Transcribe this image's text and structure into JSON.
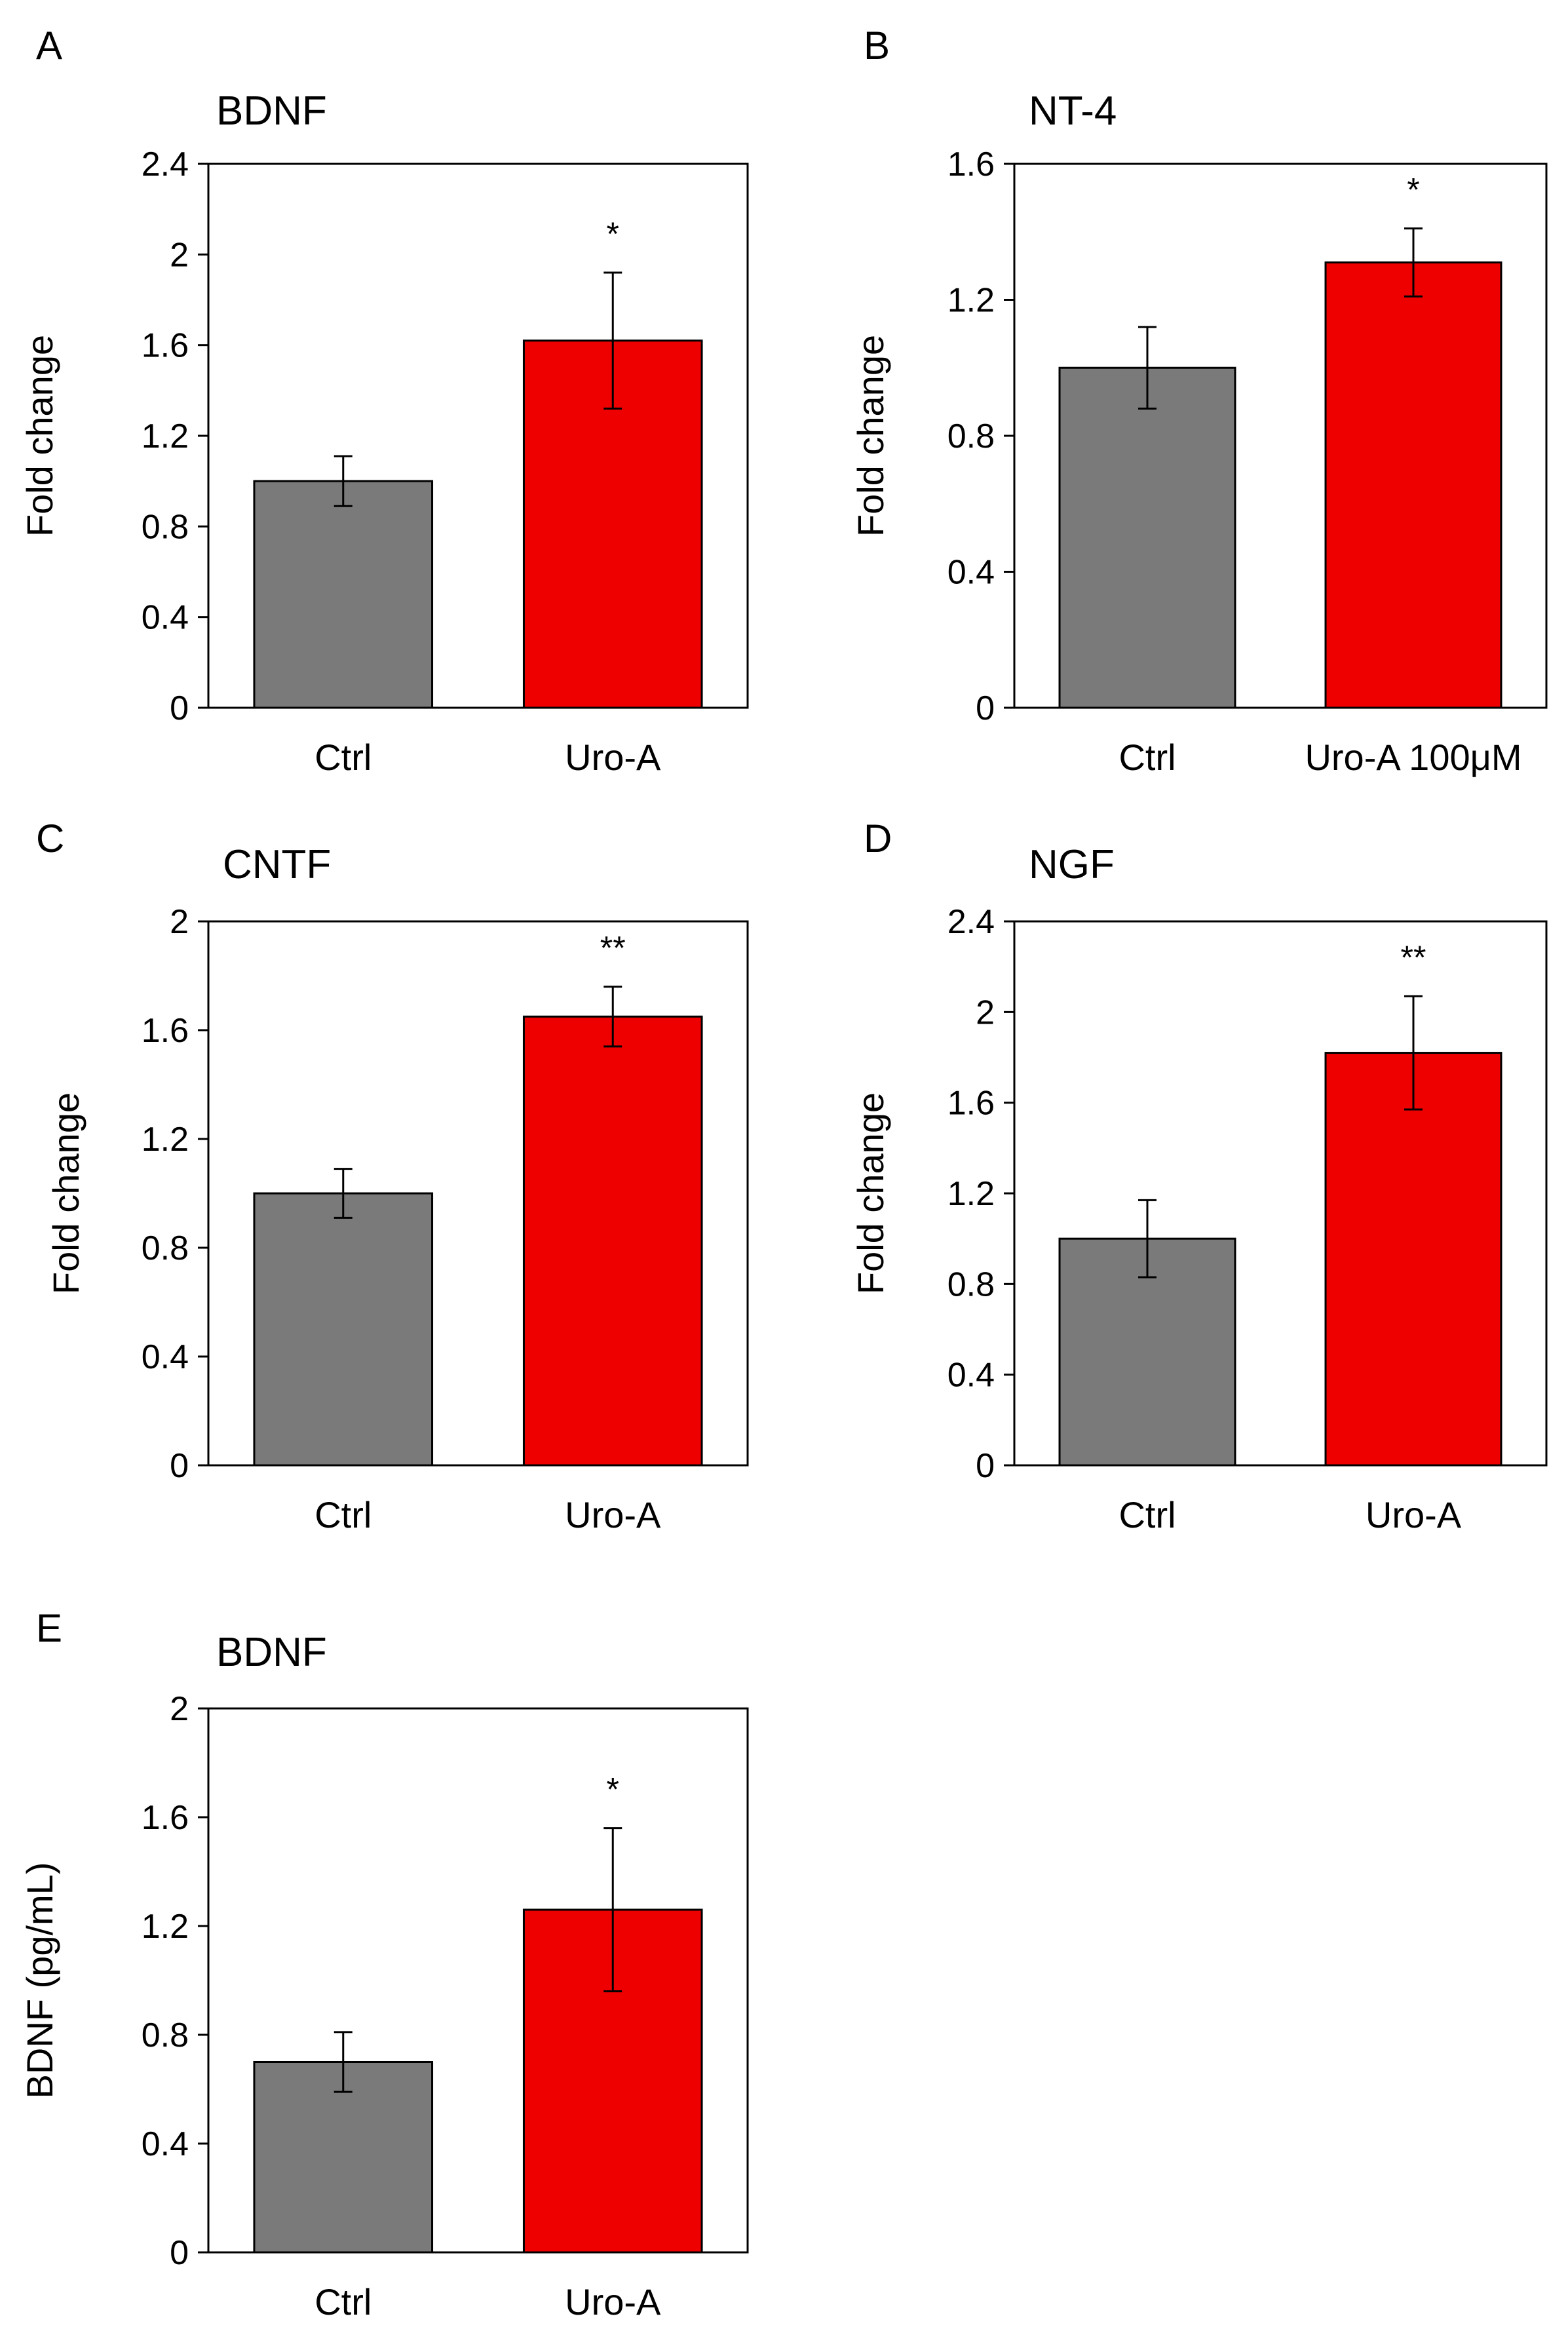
{
  "colors": {
    "ctrl": "#7a7a7a",
    "uro": "#ee0000",
    "axis": "#000000"
  },
  "chart_data": [
    {
      "panel": "A",
      "type": "bar",
      "title": "BDNF",
      "xlabel": "",
      "ylabel": "Fold change",
      "ylim": [
        0,
        2.4
      ],
      "yticks": [
        "0",
        "0.4",
        "0.8",
        "1.2",
        "1.6",
        "2",
        "2.4"
      ],
      "categories": [
        "Ctrl",
        "Uro-A"
      ],
      "values": [
        1.0,
        1.62
      ],
      "errors": [
        0.11,
        0.3
      ],
      "significance": [
        "",
        "*"
      ]
    },
    {
      "panel": "B",
      "type": "bar",
      "title": "NT-4",
      "xlabel": "",
      "ylabel": "Fold change",
      "ylim": [
        0,
        1.6
      ],
      "yticks": [
        "0",
        "0.4",
        "0.8",
        "1.2",
        "1.6"
      ],
      "categories": [
        "Ctrl",
        "Uro-A 100μM"
      ],
      "values": [
        1.0,
        1.31
      ],
      "errors": [
        0.12,
        0.1
      ],
      "significance": [
        "",
        "*"
      ]
    },
    {
      "panel": "C",
      "type": "bar",
      "title": "CNTF",
      "xlabel": "",
      "ylabel": "Fold change",
      "ylim": [
        0,
        2
      ],
      "yticks": [
        "0",
        "0.4",
        "0.8",
        "1.2",
        "1.6",
        "2"
      ],
      "categories": [
        "Ctrl",
        "Uro-A"
      ],
      "values": [
        1.0,
        1.65
      ],
      "errors": [
        0.09,
        0.11
      ],
      "significance": [
        "",
        "**"
      ]
    },
    {
      "panel": "D",
      "type": "bar",
      "title": "NGF",
      "xlabel": "",
      "ylabel": "Fold change",
      "ylim": [
        0,
        2.4
      ],
      "yticks": [
        "0",
        "0.4",
        "0.8",
        "1.2",
        "1.6",
        "2",
        "2.4"
      ],
      "categories": [
        "Ctrl",
        "Uro-A"
      ],
      "values": [
        1.0,
        1.82
      ],
      "errors": [
        0.17,
        0.25
      ],
      "significance": [
        "",
        "**"
      ]
    },
    {
      "panel": "E",
      "type": "bar",
      "title": "BDNF",
      "xlabel": "",
      "ylabel": "BDNF (pg/mL)",
      "ylim": [
        0,
        2
      ],
      "yticks": [
        "0",
        "0.4",
        "0.8",
        "1.2",
        "1.6",
        "2"
      ],
      "categories": [
        "Ctrl",
        "Uro-A"
      ],
      "values": [
        0.7,
        1.26
      ],
      "errors": [
        0.11,
        0.3
      ],
      "significance": [
        "",
        "*"
      ]
    }
  ]
}
